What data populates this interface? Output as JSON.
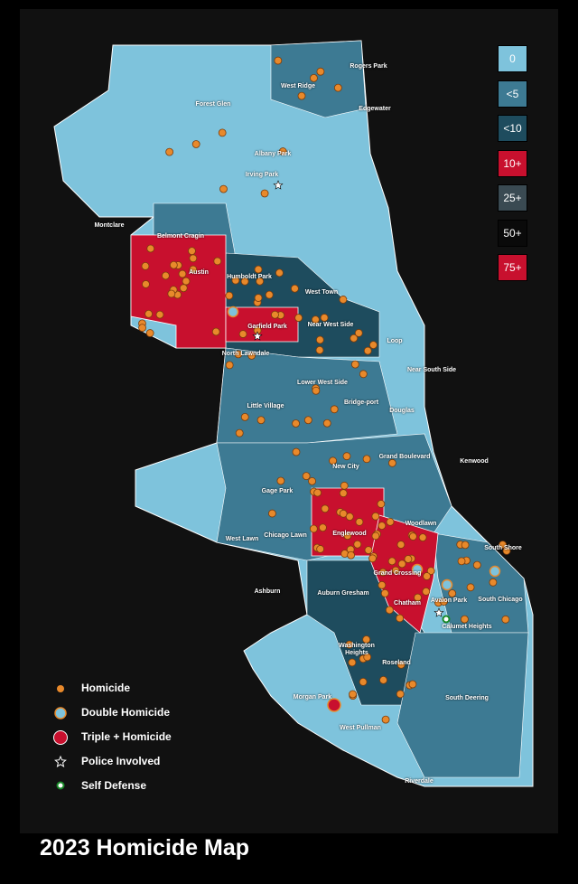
{
  "title": "2023 Homicide Map",
  "scale_legend": {
    "items": [
      "0",
      "<5",
      "<10",
      "10+",
      "25+",
      "50+",
      "75+"
    ]
  },
  "marker_legend": {
    "items": [
      "Homicide",
      "Double Homicide",
      "Triple + Homicide",
      "Police Involved",
      "Self Defense"
    ]
  },
  "neighborhoods": [
    "Rogers Park",
    "West Ridge",
    "Edgewater",
    "Forest Glen",
    "Albany Park",
    "Irving Park",
    "Montclare",
    "Belmont Cragin",
    "Austin",
    "Humboldt Park",
    "West Town",
    "Garfield Park",
    "Near West Side",
    "North Lawndale",
    "Loop",
    "Near South Side",
    "Lower West Side",
    "Little Village",
    "Bridge-port",
    "Douglas",
    "Grand Boulevard",
    "Kenwood",
    "New City",
    "Gage Park",
    "West Lawn",
    "Chicago Lawn",
    "Englewood",
    "Woodlawn",
    "South Shore",
    "Ashburn",
    "Auburn Gresham",
    "Grand Crossing",
    "Chatham",
    "Avalon Park",
    "South Chicago",
    "Calumet Heights",
    "Washington Heights",
    "Roseland",
    "Morgan Park",
    "West Pullman",
    "South Deering",
    "Riverdale"
  ]
}
